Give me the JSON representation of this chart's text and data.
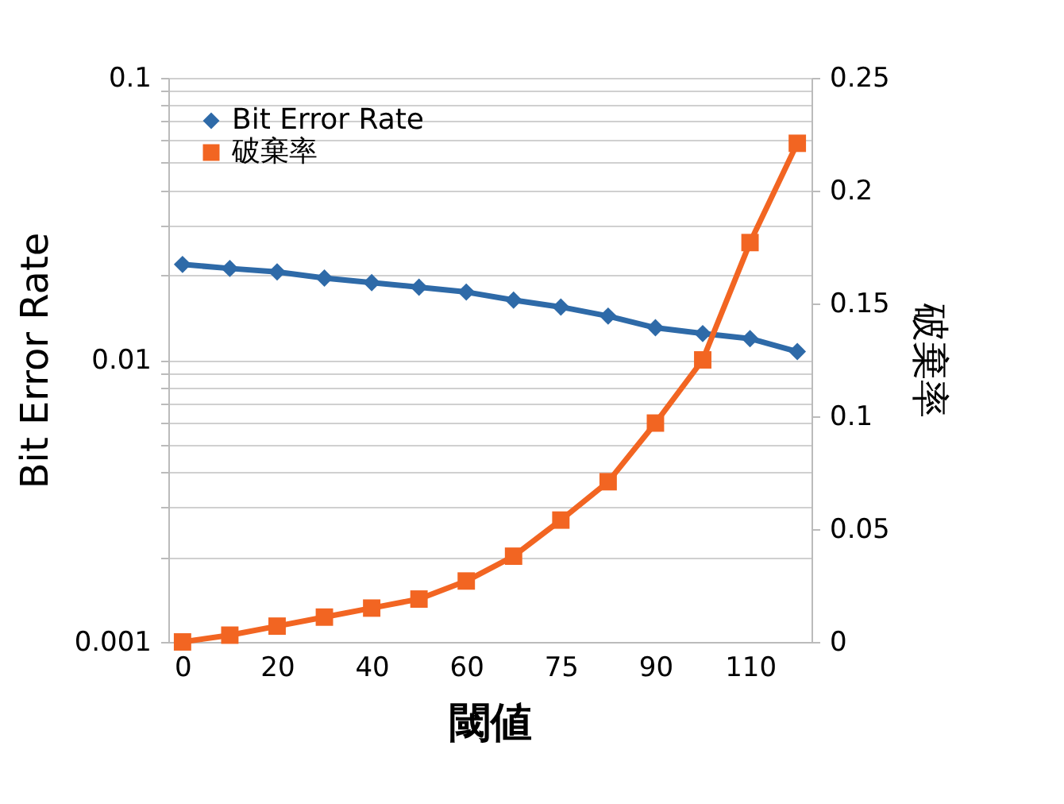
{
  "chart_data": {
    "type": "line",
    "xlabel": "閾値",
    "ylabel": "Bit Error Rate",
    "y2label": "破棄率",
    "categories": [
      "0",
      null,
      "20",
      null,
      "40",
      null,
      "60",
      null,
      "75",
      null,
      "90",
      null,
      "110",
      null
    ],
    "series": [
      {
        "name": "Bit Error Rate",
        "color": "#2e6aa8",
        "marker": "diamond",
        "values": [
          0.0218,
          0.0211,
          0.0205,
          0.0195,
          0.0188,
          0.0181,
          0.0174,
          0.0163,
          0.0154,
          0.0143,
          0.013,
          0.0124,
          0.0119,
          0.0107
        ]
      },
      {
        "name": "破棄率",
        "color": "#f26522",
        "marker": "square",
        "axis": "y2",
        "values": [
          0,
          0.003,
          0.007,
          0.011,
          0.015,
          0.019,
          0.027,
          0.038,
          0.054,
          0.071,
          0.097,
          0.125,
          0.177,
          0.221
        ]
      }
    ],
    "log": "y",
    "ylim": [
      0.001,
      0.1
    ],
    "yticks": [
      0.001,
      {
        "value": 0.002,
        "label": null
      },
      {
        "value": 0.003,
        "label": null
      },
      {
        "value": 0.004,
        "label": null
      },
      {
        "value": 0.005,
        "label": null
      },
      {
        "value": 0.006,
        "label": null
      },
      {
        "value": 0.007,
        "label": null
      },
      {
        "value": 0.008,
        "label": null
      },
      {
        "value": 0.009,
        "label": null
      },
      0.01,
      {
        "value": 0.02,
        "label": null
      },
      {
        "value": 0.03,
        "label": null
      },
      {
        "value": 0.04,
        "label": null
      },
      {
        "value": 0.05,
        "label": null
      },
      {
        "value": 0.06,
        "label": null
      },
      {
        "value": 0.07,
        "label": null
      },
      {
        "value": 0.08,
        "label": null
      },
      {
        "value": 0.09,
        "label": null
      },
      0.1
    ],
    "y2lim": [
      0,
      0.25
    ],
    "y2ticks": [
      0,
      0.05,
      0.1,
      0.15,
      0.2,
      0.25
    ],
    "grid": "y",
    "legend": "top left",
    "line_style": "solid"
  }
}
